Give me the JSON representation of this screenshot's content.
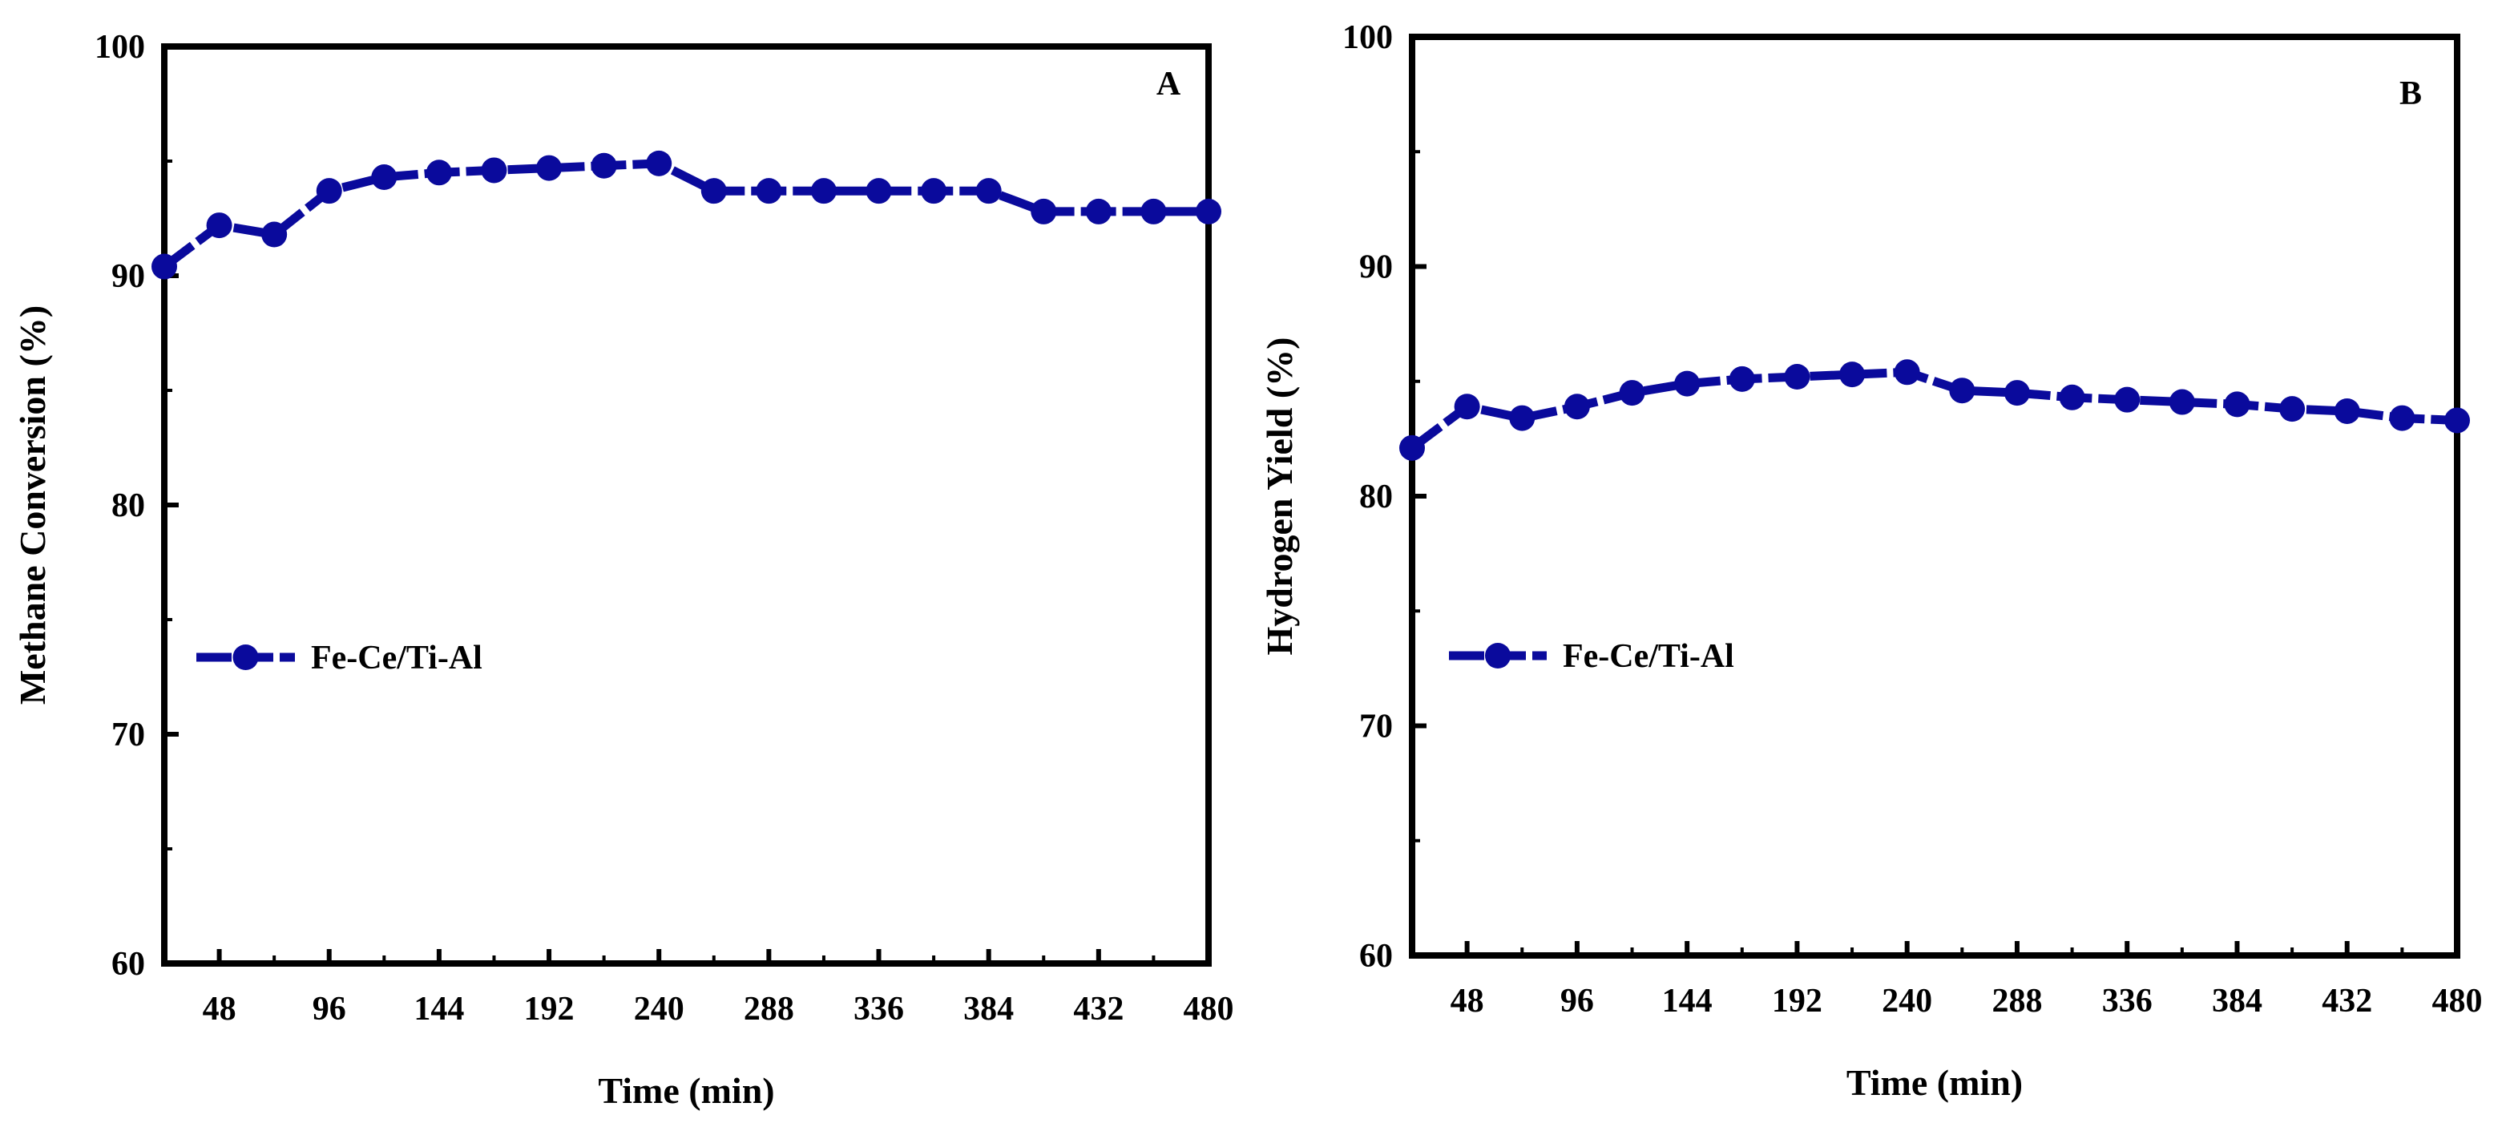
{
  "chart_data": [
    {
      "type": "line",
      "panel_label": "A",
      "xlabel": "Time (min)",
      "ylabel": "Methane Conversion (%)",
      "xlim": [
        24,
        480
      ],
      "ylim": [
        60,
        100
      ],
      "xticks": [
        48,
        96,
        144,
        192,
        240,
        288,
        336,
        384,
        432,
        480
      ],
      "yticks": [
        60,
        70,
        80,
        90,
        100
      ],
      "grid": false,
      "legend_position": "center-left",
      "series": [
        {
          "name": "Fe-Ce/Ti-Al",
          "color": "#0a0a9c",
          "line_style": "dashed",
          "marker": "circle",
          "x": [
            24,
            48,
            72,
            96,
            120,
            144,
            168,
            192,
            216,
            240,
            264,
            288,
            312,
            336,
            360,
            384,
            408,
            432,
            456,
            480
          ],
          "y": [
            90.4,
            92.2,
            91.8,
            93.7,
            94.3,
            94.5,
            94.6,
            94.7,
            94.8,
            94.9,
            93.7,
            93.7,
            93.7,
            93.7,
            93.7,
            93.7,
            92.8,
            92.8,
            92.8,
            92.8
          ]
        }
      ]
    },
    {
      "type": "line",
      "panel_label": "B",
      "xlabel": "Time (min)",
      "ylabel": "Hydrogen Yield (%)",
      "xlim": [
        24,
        480
      ],
      "ylim": [
        60,
        100
      ],
      "xticks": [
        48,
        96,
        144,
        192,
        240,
        288,
        336,
        384,
        432,
        480
      ],
      "yticks": [
        60,
        70,
        80,
        90,
        100
      ],
      "grid": false,
      "legend_position": "center-left",
      "series": [
        {
          "name": "Fe-Ce/Ti-Al",
          "color": "#0a0a9c",
          "line_style": "dashed",
          "marker": "circle",
          "x": [
            24,
            48,
            72,
            96,
            120,
            144,
            168,
            192,
            216,
            240,
            264,
            288,
            312,
            336,
            360,
            384,
            408,
            432,
            456,
            480
          ],
          "y": [
            82.1,
            83.9,
            83.4,
            83.9,
            84.5,
            84.9,
            85.1,
            85.2,
            85.3,
            85.4,
            84.6,
            84.5,
            84.3,
            84.2,
            84.1,
            84.0,
            83.8,
            83.7,
            83.4,
            83.3
          ]
        }
      ]
    }
  ]
}
